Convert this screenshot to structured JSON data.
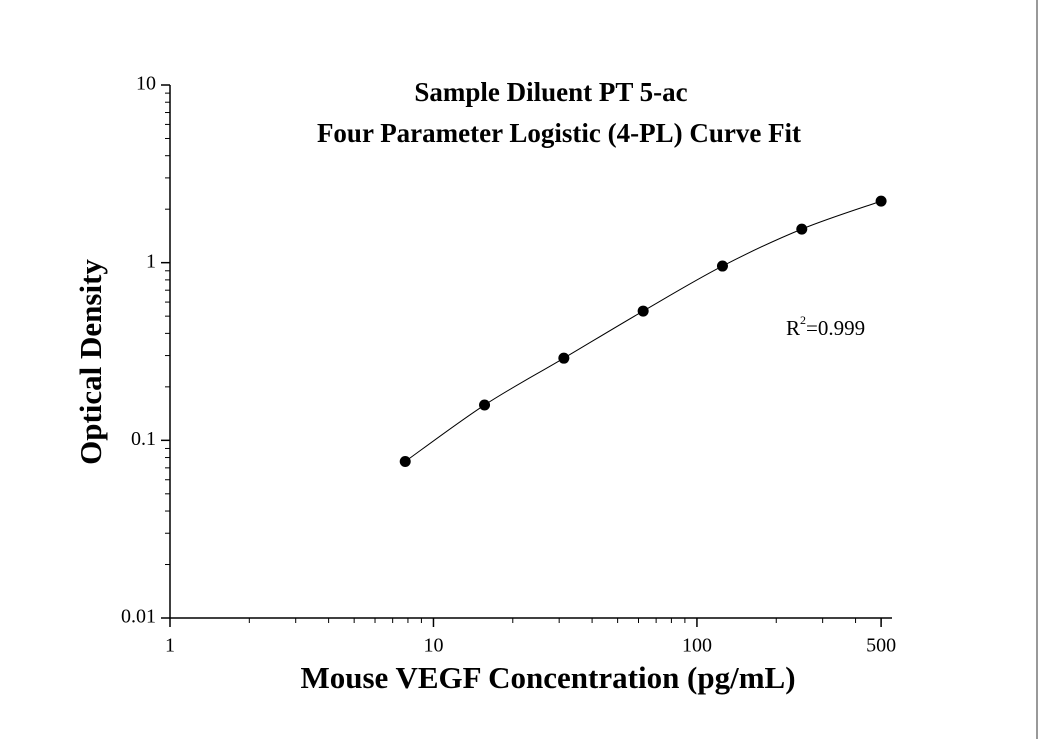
{
  "chart_data": {
    "type": "scatter",
    "title": "Sample Diluent PT 5-ac",
    "subtitle": "Four Parameter Logistic (4-PL) Curve Fit",
    "x_label": "Mouse VEGF Concentration (pg/mL)",
    "y_label": "Optical Density",
    "x": [
      7.8125,
      15.625,
      31.25,
      62.5,
      125,
      250,
      500
    ],
    "values": [
      0.076,
      0.158,
      0.29,
      0.534,
      0.957,
      1.545,
      2.22
    ],
    "color": "#000000",
    "fit_line": true,
    "x_log": true,
    "y_log": true,
    "xlim": [
      1,
      550
    ],
    "xticks": [
      1,
      10,
      100,
      500
    ],
    "ylim": [
      0.01,
      10
    ],
    "yticks": [
      0.01,
      0.1,
      1,
      10
    ],
    "annotation": {
      "base": "R",
      "superscript": "2",
      "text": "=0.999"
    }
  }
}
